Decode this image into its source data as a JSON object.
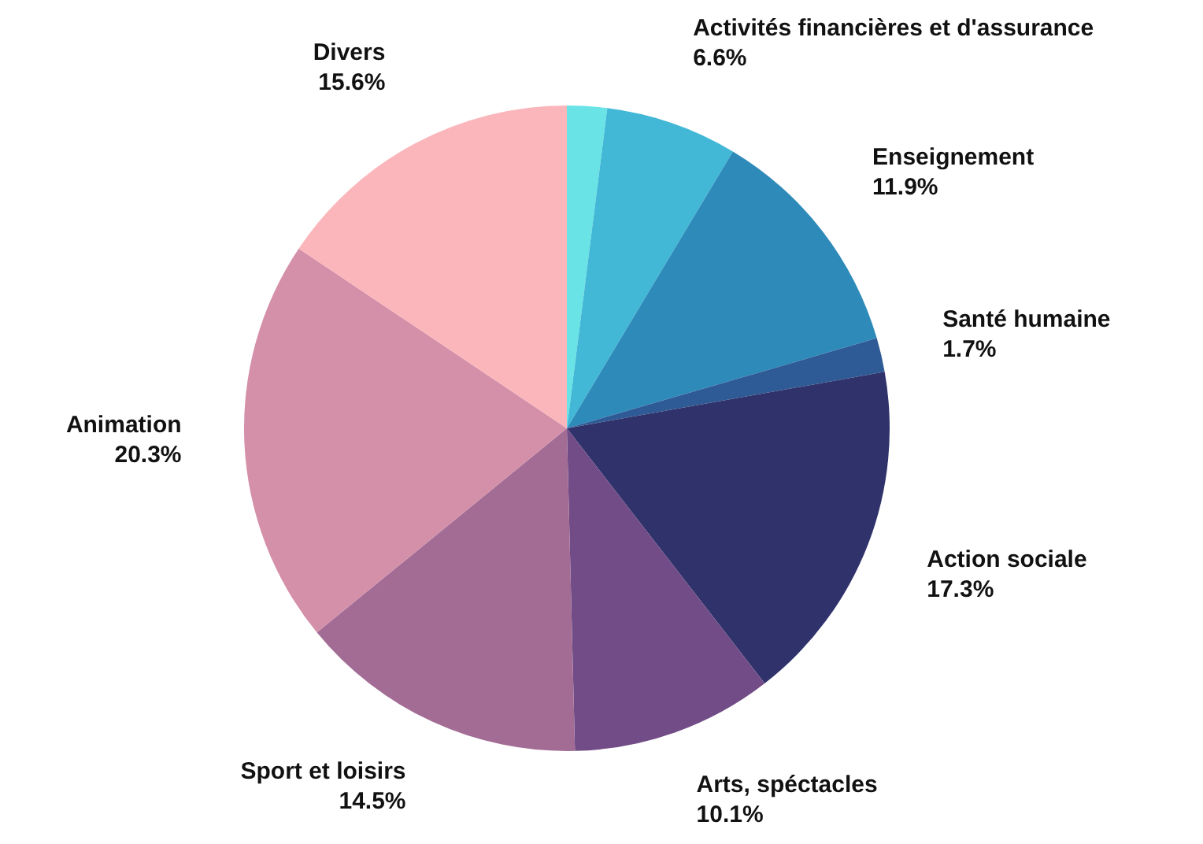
{
  "chart_data": {
    "type": "pie",
    "categories": [
      null,
      "Activités financières et d'assurance",
      "Enseignement",
      "Santé humaine",
      "Action sociale",
      "Arts, spéctacles",
      "Sport et loisirs",
      "Animation",
      "Divers"
    ],
    "values": [
      2.0,
      6.6,
      11.9,
      1.7,
      17.3,
      10.1,
      14.5,
      20.3,
      15.6
    ],
    "value_labels": [
      null,
      "6.6%",
      "11.9%",
      "1.7%",
      "17.3%",
      "10.1%",
      "14.5%",
      "20.3%",
      "15.6%"
    ],
    "colors": [
      "#6ae3e6",
      "#42b8d6",
      "#2d8ab9",
      "#2e5a96",
      "#30336b",
      "#714c86",
      "#a26c95",
      "#d48fa9",
      "#fbb6bb"
    ]
  }
}
